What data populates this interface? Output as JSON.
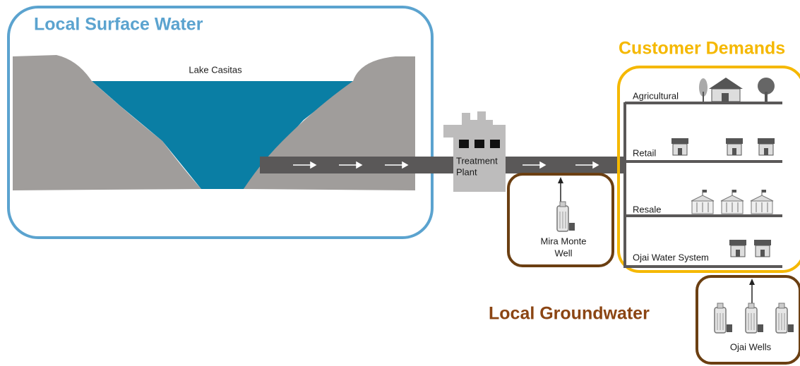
{
  "surface_water": {
    "title": "Local Surface Water",
    "lake": "Lake Casitas"
  },
  "treatment_plant": {
    "lines": [
      "Treatment",
      "Plant"
    ]
  },
  "mira_monte_well": {
    "lines": [
      "Mira Monte",
      "Well"
    ]
  },
  "customer_demands": {
    "title": "Customer Demands",
    "categories": [
      "Agricultural",
      "Retail",
      "Resale",
      "Ojai Water System"
    ]
  },
  "groundwater": {
    "title": "Local Groundwater",
    "ojai_wells": "Ojai Wells"
  }
}
